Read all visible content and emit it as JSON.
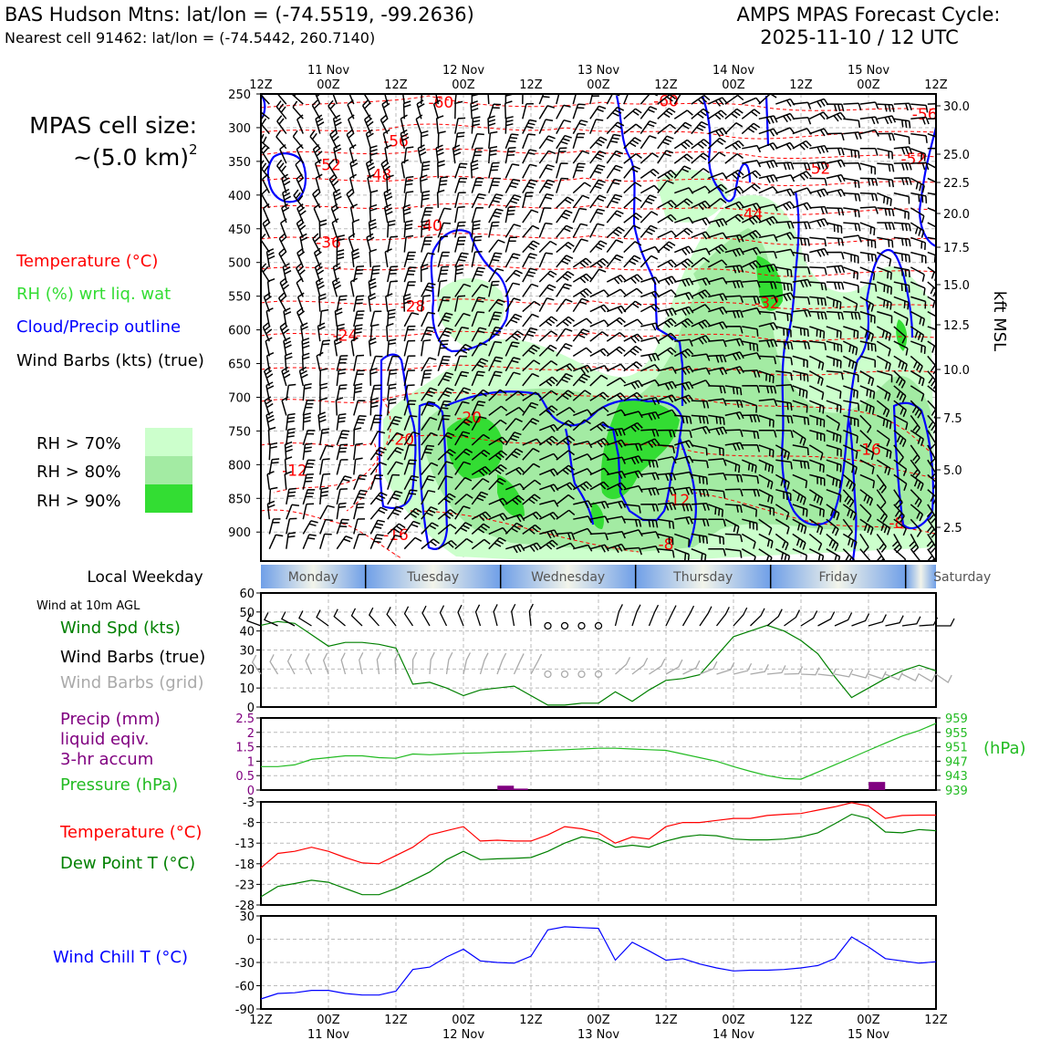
{
  "header": {
    "title_line1": "BAS Hudson Mtns: lat/lon = (-74.5519, -99.2636)",
    "title_line2": "Nearest cell 91462: lat/lon = (-74.5442, 260.7140)",
    "cycle_line1": "AMPS MPAS Forecast Cycle:",
    "cycle_line2": "2025-11-10 / 12 UTC"
  },
  "cell_size": {
    "line1": "MPAS cell size:",
    "line2": "~(5.0 km)",
    "exp": "2"
  },
  "legend": {
    "temperature": "Temperature (°C)",
    "rh": "RH (%) wrt liq. wat",
    "cloud": "Cloud/Precip outline",
    "wind": "Wind Barbs (kts) (true)",
    "rh70": "RH > 70%",
    "rh80": "RH > 80%",
    "rh90": "RH > 90%"
  },
  "colors": {
    "temp": "#ff0000",
    "rh70": "#ccffcc",
    "rh80": "#a3eba3",
    "rh90": "#33dd33",
    "cloud": "#0000ff",
    "wind_line": "#008000",
    "precip": "#800080",
    "pressure": "#22bb22",
    "dewpoint": "#008000",
    "windchill": "#0000ff",
    "grid_barb": "#aaaaaa"
  },
  "time_axis": {
    "hours": [
      "12Z",
      "00Z",
      "12Z",
      "00Z",
      "12Z",
      "00Z",
      "12Z",
      "00Z",
      "12Z",
      "00Z",
      "12Z"
    ],
    "dates": [
      "",
      "11 Nov",
      "",
      "12 Nov",
      "",
      "13 Nov",
      "",
      "14 Nov",
      "",
      "15 Nov",
      ""
    ]
  },
  "weekday": {
    "label": "Local Weekday",
    "days": [
      "Monday",
      "Tuesday",
      "Wednesday",
      "Thursday",
      "Friday",
      "Saturday"
    ]
  },
  "wind10": {
    "title": "Wind at 10m AGL",
    "label_speed": "Wind Spd (kts)",
    "label_true": "Wind Barbs (true)",
    "label_grid": "Wind Barbs (grid)"
  },
  "precip_labels": {
    "line1": "Precip (mm)",
    "line2": "liquid eqiv.",
    "line3": "3-hr accum",
    "pressure": "Pressure (hPa)",
    "unit": "(hPa)"
  },
  "temp_labels": {
    "temperature": "Temperature (°C)",
    "dewpoint": "Dew Point T (°C)"
  },
  "wc_labels": {
    "windchill": "Wind Chill T (°C)"
  },
  "right_axis_label": "kft MSL",
  "chart_data": [
    {
      "type": "heatmap",
      "name": "cross-section",
      "y_pressure_ticks": [
        250,
        300,
        350,
        400,
        450,
        500,
        550,
        600,
        650,
        700,
        750,
        800,
        850,
        900
      ],
      "y_kft_ticks": [
        "30.0",
        "25.0",
        "22.5",
        "20.0",
        "17.5",
        "15.0",
        "12.5",
        "10.0",
        "7.5",
        "5.0",
        "2.5"
      ],
      "x_range_hours": [
        0,
        120
      ],
      "temperature_labels": [
        {
          "text": "-60",
          "t": 32,
          "p": 262
        },
        {
          "text": "-60",
          "t": 72,
          "p": 260
        },
        {
          "text": "-56",
          "t": 24,
          "p": 320
        },
        {
          "text": "-56",
          "t": 118,
          "p": 280
        },
        {
          "text": "-52",
          "t": 12,
          "p": 355
        },
        {
          "text": "-52",
          "t": 116,
          "p": 346
        },
        {
          "text": "-52",
          "t": 99,
          "p": 360
        },
        {
          "text": "-48",
          "t": 21,
          "p": 370
        },
        {
          "text": "-44",
          "t": 87,
          "p": 428
        },
        {
          "text": "-40",
          "t": 30,
          "p": 445
        },
        {
          "text": "-36",
          "t": 12,
          "p": 470
        },
        {
          "text": "-32",
          "t": 90,
          "p": 560
        },
        {
          "text": "-28",
          "t": 27,
          "p": 565
        },
        {
          "text": "-24",
          "t": 15,
          "p": 608
        },
        {
          "text": "-20",
          "t": 37,
          "p": 730
        },
        {
          "text": "-20",
          "t": 25,
          "p": 762
        },
        {
          "text": "-16",
          "t": 108,
          "p": 777
        },
        {
          "text": "-12",
          "t": 6,
          "p": 808
        },
        {
          "text": "-12",
          "t": 74,
          "p": 852
        },
        {
          "text": "-16",
          "t": 24,
          "p": 904
        },
        {
          "text": "-8",
          "t": 72,
          "p": 918
        },
        {
          "text": "-8",
          "t": 113,
          "p": 886
        }
      ],
      "rh_regions_levels": [
        70,
        80,
        90
      ],
      "cloud_outline": true
    },
    {
      "type": "line",
      "name": "wind-speed-10m",
      "ylim": [
        0,
        60
      ],
      "yticks": [
        0,
        10,
        20,
        30,
        40,
        50,
        60
      ],
      "x_hours": [
        0,
        3,
        6,
        9,
        12,
        15,
        18,
        21,
        24,
        27,
        30,
        33,
        36,
        39,
        42,
        45,
        48,
        51,
        54,
        57,
        60,
        63,
        66,
        69,
        72,
        75,
        78,
        81,
        84,
        87,
        90,
        93,
        96,
        99,
        102,
        105,
        108,
        111,
        114,
        117,
        120
      ],
      "series": [
        {
          "values": [
            43,
            45,
            44,
            38,
            32,
            34,
            34,
            33,
            31,
            12,
            13,
            10,
            6,
            9,
            10,
            11,
            6,
            1,
            1,
            2,
            2,
            8,
            3,
            9,
            14,
            15,
            17,
            27,
            37,
            40,
            43,
            40,
            35,
            28,
            16,
            5,
            10,
            15,
            19,
            22,
            19
          ]
        }
      ]
    },
    {
      "type": "bar",
      "name": "precip-3hr",
      "ylim": [
        0,
        2.5
      ],
      "yticks": [
        0,
        0.5,
        1.0,
        1.5,
        2.0,
        2.5
      ],
      "bars": [
        {
          "x_hours": 43.5,
          "value": 0.15
        },
        {
          "x_hours": 46,
          "value": 0.05
        },
        {
          "x_hours": 109.5,
          "value": 0.28
        }
      ]
    },
    {
      "type": "line",
      "name": "pressure",
      "ylim": [
        939,
        959
      ],
      "yticks": [
        939,
        943,
        947,
        951,
        955,
        959
      ],
      "x_hours": [
        0,
        3,
        6,
        9,
        12,
        15,
        18,
        21,
        24,
        27,
        30,
        33,
        36,
        39,
        42,
        45,
        48,
        51,
        54,
        57,
        60,
        63,
        66,
        69,
        72,
        75,
        78,
        81,
        84,
        87,
        90,
        93,
        96,
        99,
        102,
        105,
        108,
        111,
        114,
        117,
        120
      ],
      "series": [
        {
          "name": "Pressure (hPa)",
          "values": [
            945.5,
            945.5,
            946,
            947.5,
            948,
            948.5,
            948.5,
            948,
            947.8,
            949,
            948.8,
            949,
            949.2,
            949.3,
            949.5,
            949.6,
            949.8,
            950,
            950.2,
            950.4,
            950.6,
            950.6,
            950.4,
            950.2,
            950,
            949,
            948,
            947,
            945.5,
            944.2,
            943,
            942.2,
            942,
            944,
            946,
            948,
            950,
            952,
            954,
            955.5,
            957.5
          ]
        }
      ]
    },
    {
      "type": "line",
      "name": "temperature-dewpoint",
      "ylim": [
        -28,
        -3
      ],
      "yticks": [
        -28,
        -23,
        -18,
        -13,
        -8,
        -3
      ],
      "x_hours": [
        0,
        3,
        6,
        9,
        12,
        15,
        18,
        21,
        24,
        27,
        30,
        33,
        36,
        39,
        42,
        45,
        48,
        51,
        54,
        57,
        60,
        63,
        66,
        69,
        72,
        75,
        78,
        81,
        84,
        87,
        90,
        93,
        96,
        99,
        102,
        105,
        108,
        111,
        114,
        117,
        120
      ],
      "series": [
        {
          "name": "Temperature (°C)",
          "values": [
            -19,
            -15.5,
            -15,
            -14,
            -15,
            -16.5,
            -17.8,
            -18,
            -16,
            -14,
            -11,
            -10,
            -9,
            -12.5,
            -12.3,
            -12.5,
            -12.5,
            -11,
            -9,
            -9.5,
            -10.5,
            -13,
            -11.5,
            -12,
            -9,
            -8,
            -8,
            -7.5,
            -7,
            -7,
            -6.3,
            -6,
            -5.8,
            -5,
            -4.2,
            -3.2,
            -4,
            -7,
            -6.3,
            -6.2,
            -6.2
          ]
        },
        {
          "name": "Dew Point T (°C)",
          "values": [
            -26,
            -23.5,
            -22.8,
            -22,
            -22.5,
            -24,
            -25.5,
            -25.5,
            -24,
            -22,
            -20,
            -17,
            -15,
            -17,
            -16.8,
            -16.7,
            -16.5,
            -15,
            -13,
            -11.5,
            -12,
            -14,
            -13.5,
            -14,
            -12.5,
            -11.5,
            -11,
            -11.2,
            -12,
            -12.2,
            -12.2,
            -12,
            -11.5,
            -10.5,
            -8.3,
            -6,
            -7,
            -10.3,
            -10.5,
            -9.7,
            -10
          ]
        }
      ]
    },
    {
      "type": "line",
      "name": "wind-chill",
      "ylim": [
        -90,
        30
      ],
      "yticks": [
        -90,
        -60,
        -30,
        0,
        30
      ],
      "x_hours": [
        0,
        3,
        6,
        9,
        12,
        15,
        18,
        21,
        24,
        27,
        30,
        33,
        36,
        39,
        42,
        45,
        48,
        51,
        54,
        57,
        60,
        63,
        66,
        69,
        72,
        75,
        78,
        81,
        84,
        87,
        90,
        93,
        96,
        99,
        102,
        105,
        108,
        111,
        114,
        117,
        120
      ],
      "series": [
        {
          "name": "Wind Chill T (°C)",
          "values": [
            -77,
            -70,
            -69,
            -66,
            -66,
            -70,
            -72,
            -72,
            -67,
            -39,
            -36,
            -23,
            -13,
            -28,
            -30,
            -31,
            -22,
            12,
            16,
            15,
            14,
            -27,
            -4,
            -15,
            -27,
            -25,
            -32,
            -37,
            -41,
            -40,
            -40,
            -39,
            -37,
            -34,
            -25,
            3,
            -10,
            -25,
            -28,
            -31,
            -29
          ]
        }
      ]
    }
  ]
}
